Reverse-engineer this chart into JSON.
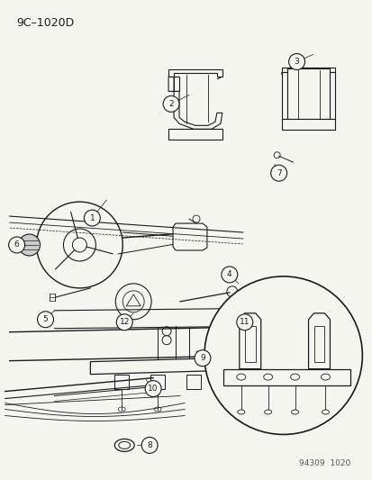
{
  "title": "9C–1020D",
  "background_color": "#f5f5f0",
  "line_color": "#1a1a1a",
  "watermark": "94309  1020",
  "fig_w": 4.14,
  "fig_h": 5.33,
  "dpi": 100
}
